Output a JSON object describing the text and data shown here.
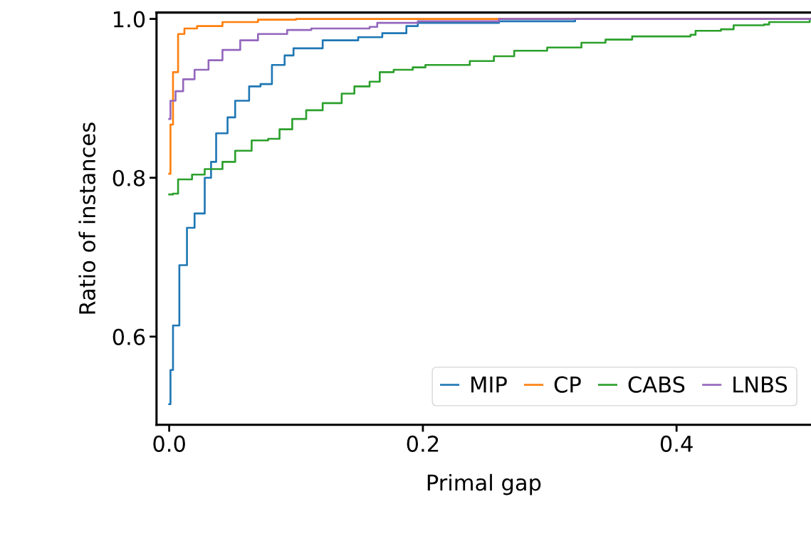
{
  "chart_data": {
    "type": "step",
    "xlabel": "Primal gap",
    "ylabel": "Ratio of instances",
    "xlim": [
      -0.01,
      0.506
    ],
    "ylim": [
      0.489,
      1.008
    ],
    "xticks": [
      {
        "value": 0,
        "label": "0.0"
      },
      0.2,
      0.4
    ],
    "yticks": [
      0.6,
      0.8,
      {
        "value": 1,
        "label": "1.0"
      }
    ],
    "grid": false,
    "legend": "bottom right",
    "series": [
      {
        "name": "MIP",
        "color": "#1f77b4",
        "x": [
          0,
          0.001,
          0.003,
          0.008,
          0.014,
          0.02,
          0.028,
          0.033,
          0.037,
          0.046,
          0.052,
          0.063,
          0.072,
          0.081,
          0.091,
          0.098,
          0.121,
          0.149,
          0.168,
          0.187,
          0.196,
          0.26,
          0.32,
          0.506
        ],
        "values": [
          0.515,
          0.558,
          0.614,
          0.69,
          0.737,
          0.755,
          0.8,
          0.82,
          0.856,
          0.876,
          0.897,
          0.915,
          0.918,
          0.942,
          0.954,
          0.963,
          0.973,
          0.977,
          0.982,
          0.991,
          0.995,
          0.997,
          1.0,
          1.0
        ]
      },
      {
        "name": "CP",
        "color": "#ff7f0e",
        "x": [
          0,
          0.001,
          0.003,
          0.007,
          0.012,
          0.022,
          0.042,
          0.07,
          0.1,
          0.506
        ],
        "values": [
          0.805,
          0.867,
          0.933,
          0.981,
          0.988,
          0.991,
          0.996,
          0.999,
          1.0,
          1.0
        ]
      },
      {
        "name": "CABS",
        "color": "#2ca02c",
        "x": [
          0,
          0.003,
          0.007,
          0.018,
          0.028,
          0.042,
          0.052,
          0.065,
          0.078,
          0.087,
          0.097,
          0.108,
          0.121,
          0.136,
          0.146,
          0.158,
          0.166,
          0.177,
          0.192,
          0.202,
          0.237,
          0.256,
          0.272,
          0.298,
          0.325,
          0.344,
          0.365,
          0.411,
          0.415,
          0.435,
          0.445,
          0.469,
          0.473,
          0.505
        ],
        "values": [
          0.779,
          0.78,
          0.798,
          0.804,
          0.811,
          0.82,
          0.834,
          0.847,
          0.849,
          0.861,
          0.874,
          0.885,
          0.894,
          0.906,
          0.915,
          0.921,
          0.933,
          0.936,
          0.939,
          0.942,
          0.947,
          0.953,
          0.96,
          0.964,
          0.97,
          0.974,
          0.978,
          0.98,
          0.985,
          0.987,
          0.992,
          0.993,
          0.996,
          0.998
        ]
      },
      {
        "name": "LNBS",
        "color": "#9467bd",
        "x": [
          0,
          0.001,
          0.005,
          0.011,
          0.02,
          0.031,
          0.042,
          0.056,
          0.07,
          0.093,
          0.112,
          0.158,
          0.164,
          0.196,
          0.26,
          0.506
        ],
        "values": [
          0.874,
          0.897,
          0.909,
          0.924,
          0.936,
          0.948,
          0.961,
          0.973,
          0.981,
          0.986,
          0.988,
          0.99,
          0.995,
          0.997,
          1.0,
          1.0
        ]
      }
    ]
  }
}
